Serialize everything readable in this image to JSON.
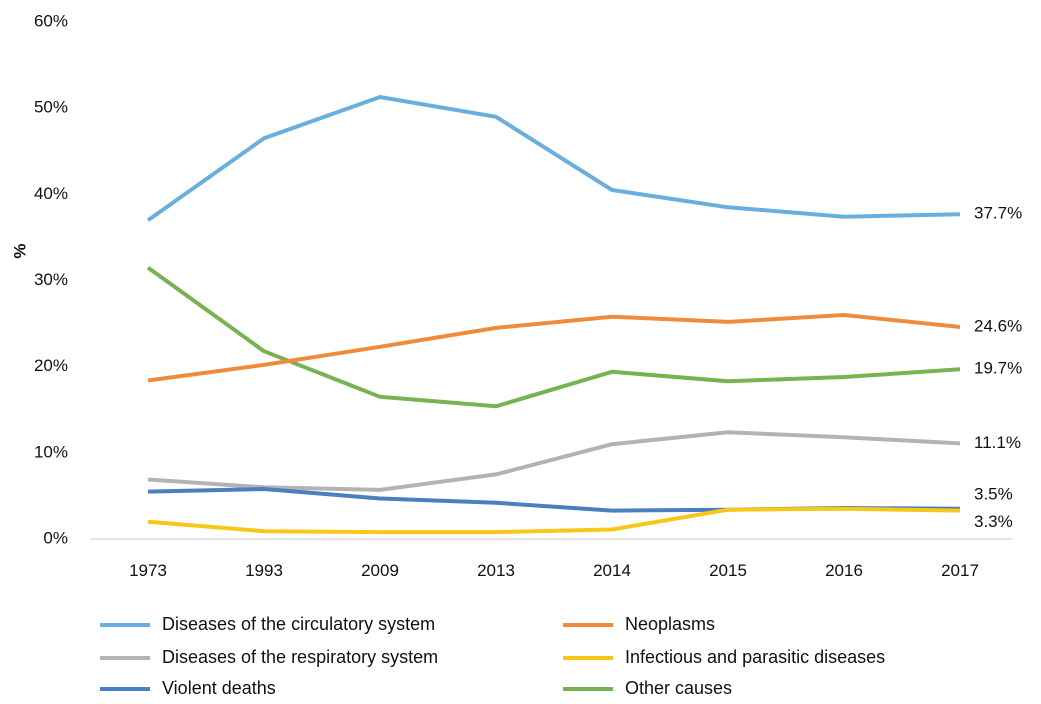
{
  "chart_data": {
    "type": "line",
    "title": "",
    "xlabel": "",
    "ylabel": "%",
    "ylim": [
      0,
      60
    ],
    "yticks": [
      "0%",
      "10%",
      "20%",
      "30%",
      "40%",
      "50%",
      "60%"
    ],
    "categories": [
      "1973",
      "1993",
      "2009",
      "2013",
      "2014",
      "2015",
      "2016",
      "2017"
    ],
    "grid": false,
    "legend_position": "bottom",
    "series": [
      {
        "name": "Diseases of the circulatory system",
        "color": "#6aaee0",
        "values": [
          37.0,
          46.5,
          51.3,
          49.0,
          40.5,
          38.5,
          37.4,
          37.7
        ],
        "end_label": "37.7%"
      },
      {
        "name": "Neoplasms",
        "color": "#ef8c3c",
        "values": [
          18.4,
          20.2,
          22.3,
          24.5,
          25.8,
          25.2,
          26.0,
          24.6
        ],
        "end_label": "24.6%"
      },
      {
        "name": "Diseases of the respiratory system",
        "color": "#b3b3b3",
        "values": [
          6.9,
          6.0,
          5.7,
          7.5,
          11.0,
          12.4,
          11.8,
          11.1
        ],
        "end_label": "11.1%"
      },
      {
        "name": "Infectious and parasitic diseases",
        "color": "#f7c818",
        "values": [
          2.0,
          0.9,
          0.8,
          0.8,
          1.1,
          3.4,
          3.5,
          3.3
        ],
        "end_label": "3.3%"
      },
      {
        "name": "Violent deaths",
        "color": "#4a7fc0",
        "values": [
          5.5,
          5.8,
          4.7,
          4.2,
          3.3,
          3.4,
          3.6,
          3.5
        ],
        "end_label": "3.5%"
      },
      {
        "name": "Other causes",
        "color": "#77b253",
        "values": [
          31.5,
          21.8,
          16.5,
          15.4,
          19.4,
          18.3,
          18.8,
          19.7
        ],
        "end_label": "19.7%"
      }
    ]
  }
}
